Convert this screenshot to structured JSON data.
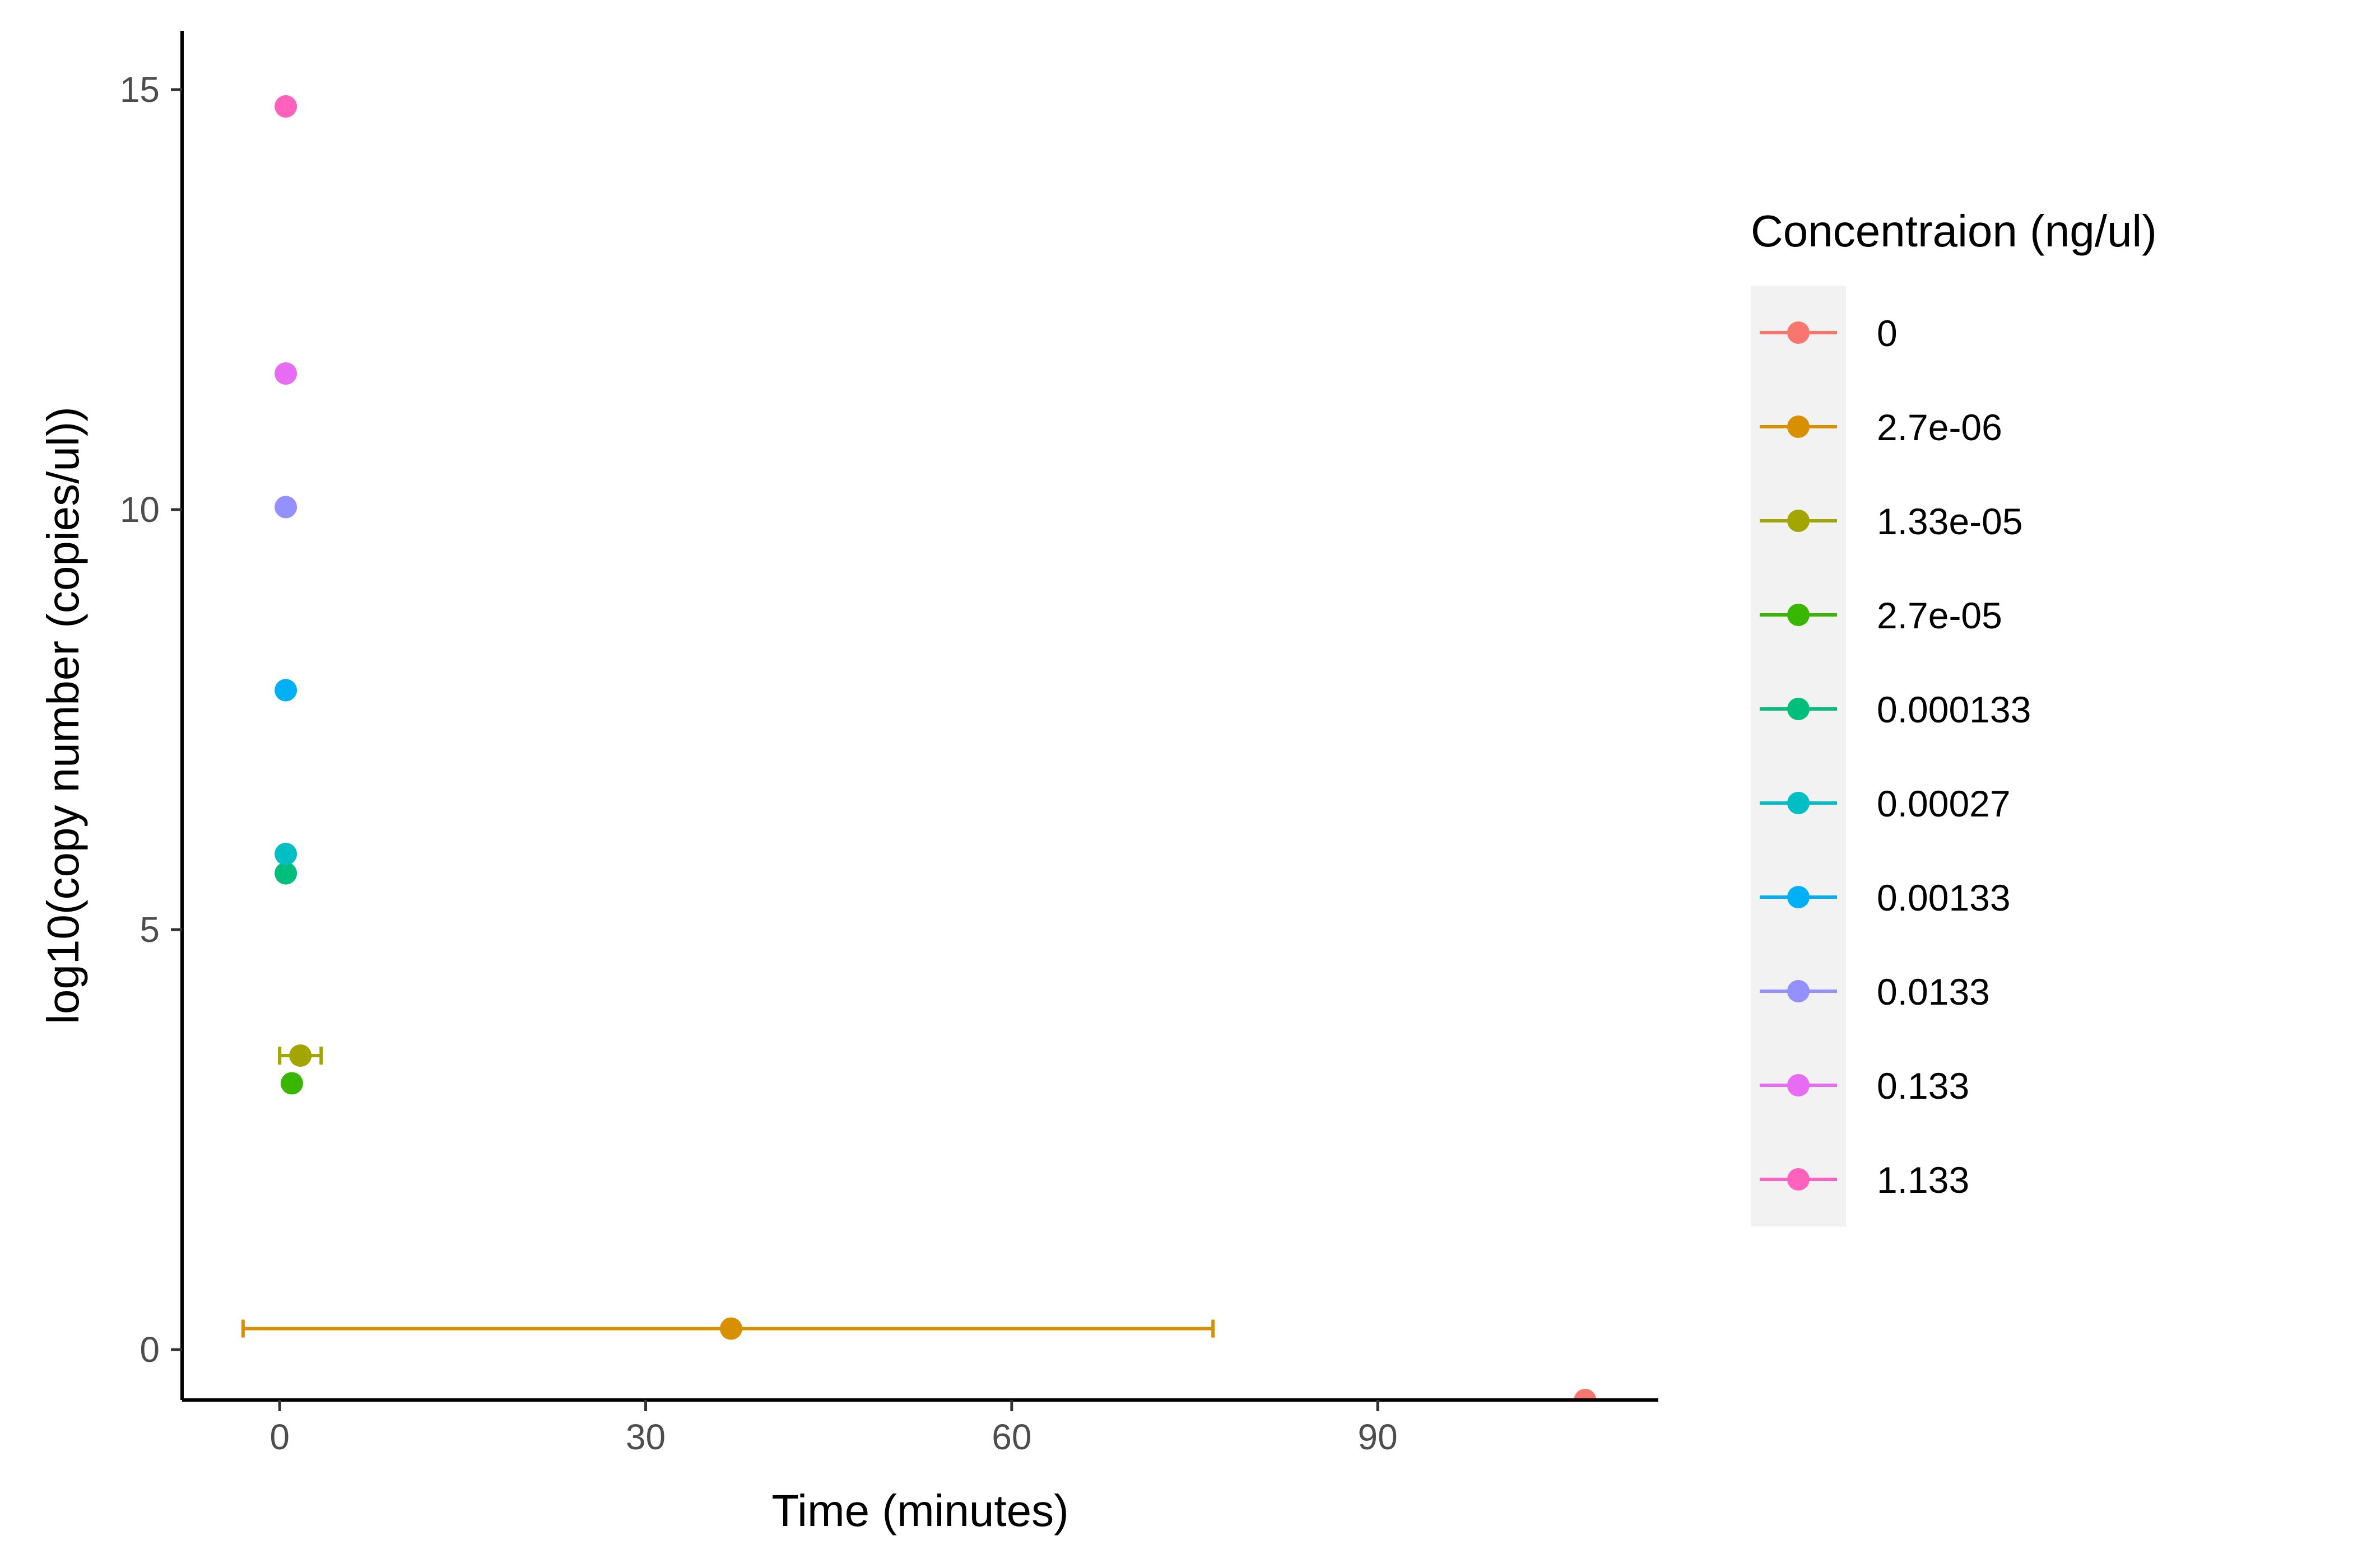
{
  "chart_data": {
    "type": "scatter",
    "title": "",
    "xlabel": "Time (minutes)",
    "ylabel": "log10(copy number (copies/ul))",
    "xlim": [
      -8,
      113
    ],
    "ylim": [
      -0.6,
      15.7
    ],
    "x_ticks": [
      0,
      30,
      60,
      90
    ],
    "y_ticks": [
      0,
      5,
      10,
      15
    ],
    "grid": false,
    "legend": {
      "title": "Concentraion (ng/ul)",
      "position": "right"
    },
    "series": [
      {
        "name": "0",
        "color": "#F8766D",
        "x": 107,
        "y": -0.6,
        "xerr_low": null,
        "xerr_high": null
      },
      {
        "name": "2.7e-06",
        "color": "#D89000",
        "x": 37,
        "y": 0.25,
        "xerr_low": -3,
        "xerr_high": 76.5
      },
      {
        "name": "1.33e-05",
        "color": "#A3A500",
        "x": 1.7,
        "y": 3.5,
        "xerr_low": 0,
        "xerr_high": 3.4
      },
      {
        "name": "2.7e-05",
        "color": "#39B600",
        "x": 1,
        "y": 3.17,
        "xerr_low": null,
        "xerr_high": null
      },
      {
        "name": "0.000133",
        "color": "#00BF7D",
        "x": 0.5,
        "y": 5.67,
        "xerr_low": null,
        "xerr_high": null
      },
      {
        "name": "0.00027",
        "color": "#00BFC4",
        "x": 0.5,
        "y": 5.9,
        "xerr_low": null,
        "xerr_high": null
      },
      {
        "name": "0.00133",
        "color": "#00B0F6",
        "x": 0.5,
        "y": 7.85,
        "xerr_low": null,
        "xerr_high": null
      },
      {
        "name": "0.0133",
        "color": "#9590FF",
        "x": 0.5,
        "y": 10.03,
        "xerr_low": null,
        "xerr_high": null
      },
      {
        "name": "0.133",
        "color": "#E76BF3",
        "x": 0.5,
        "y": 11.62,
        "xerr_low": null,
        "xerr_high": null
      },
      {
        "name": "1.133",
        "color": "#FF62BC",
        "x": 0.5,
        "y": 14.8,
        "xerr_low": null,
        "xerr_high": null
      }
    ]
  }
}
